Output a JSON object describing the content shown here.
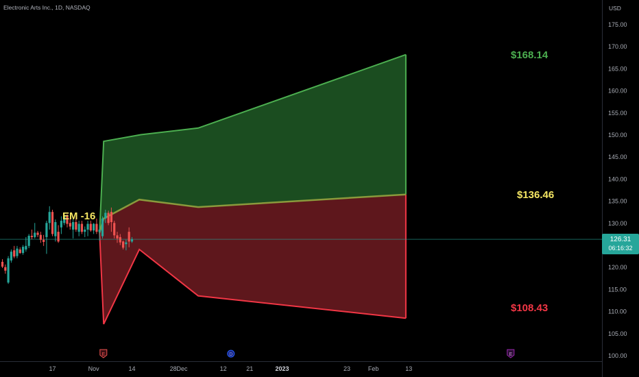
{
  "header": {
    "symbol_title": "Electronic Arts Inc., 1D, NASDAQ",
    "currency": "USD"
  },
  "current_price": {
    "price": "126.31",
    "countdown": "06:16:32"
  },
  "colors": {
    "background": "#000000",
    "up_candle": "#26a69a",
    "down_candle": "#ef5350",
    "upper_band_line": "#4caf50",
    "upper_band_fill": "#1b4d20",
    "lower_band_line": "#f23645",
    "lower_band_fill": "#5e171c",
    "middle_line": "#8a9a3c",
    "upper_label": "#4caf50",
    "middle_label": "#f5e663",
    "lower_label": "#f23645",
    "em_label": "#f5e663",
    "badge": "#26a69a"
  },
  "chart_data": {
    "type": "candlestick",
    "title": "",
    "ylabel": "USD",
    "ylim": [
      99,
      177
    ],
    "y_ticks": [
      "100.00",
      "105.00",
      "110.00",
      "115.00",
      "120.00",
      "125.00",
      "130.00",
      "135.00",
      "140.00",
      "145.00",
      "150.00",
      "155.00",
      "160.00",
      "165.00",
      "170.00",
      "175.00"
    ],
    "x_ticks": [
      {
        "label": "17",
        "x": 17
      },
      {
        "label": "Nov",
        "x": 31
      },
      {
        "label": "14",
        "x": 44
      },
      {
        "label": "28",
        "x": 58
      },
      {
        "label": "Dec",
        "x": 61
      },
      {
        "label": "12",
        "x": 75
      },
      {
        "label": "21",
        "x": 84
      },
      {
        "label": "2023",
        "x": 95,
        "bold": true
      },
      {
        "label": "23",
        "x": 117
      },
      {
        "label": "Feb",
        "x": 126
      },
      {
        "label": "13",
        "x": 138
      }
    ],
    "candles": [
      {
        "x": 0,
        "o": 121.2,
        "h": 121.8,
        "l": 119.8,
        "c": 120.1
      },
      {
        "x": 1,
        "o": 120.0,
        "h": 120.6,
        "l": 118.5,
        "c": 119.2
      },
      {
        "x": 2,
        "o": 116.5,
        "h": 122.5,
        "l": 116.2,
        "c": 122.0
      },
      {
        "x": 3,
        "o": 121.5,
        "h": 124.0,
        "l": 121.0,
        "c": 123.5
      },
      {
        "x": 4,
        "o": 123.8,
        "h": 124.8,
        "l": 122.0,
        "c": 122.4
      },
      {
        "x": 5,
        "o": 122.5,
        "h": 124.8,
        "l": 122.0,
        "c": 124.2
      },
      {
        "x": 6,
        "o": 124.0,
        "h": 124.5,
        "l": 123.0,
        "c": 123.2
      },
      {
        "x": 7,
        "o": 123.2,
        "h": 125.0,
        "l": 122.8,
        "c": 124.6
      },
      {
        "x": 8,
        "o": 124.0,
        "h": 126.8,
        "l": 123.5,
        "c": 124.8
      },
      {
        "x": 9,
        "o": 124.8,
        "h": 127.5,
        "l": 124.3,
        "c": 127.1
      },
      {
        "x": 10,
        "o": 127.1,
        "h": 128.5,
        "l": 126.3,
        "c": 126.8
      },
      {
        "x": 11,
        "o": 126.8,
        "h": 130.0,
        "l": 126.5,
        "c": 127.8
      },
      {
        "x": 12,
        "o": 127.8,
        "h": 128.2,
        "l": 126.8,
        "c": 127.3
      },
      {
        "x": 13,
        "o": 127.3,
        "h": 128.0,
        "l": 125.5,
        "c": 126.2
      },
      {
        "x": 14,
        "o": 126.2,
        "h": 127.3,
        "l": 124.8,
        "c": 125.7
      },
      {
        "x": 15,
        "o": 126.8,
        "h": 130.5,
        "l": 123.0,
        "c": 130.0
      },
      {
        "x": 16,
        "o": 130.0,
        "h": 133.8,
        "l": 128.5,
        "c": 132.5
      },
      {
        "x": 17,
        "o": 132.5,
        "h": 133.0,
        "l": 127.0,
        "c": 127.5
      },
      {
        "x": 18,
        "o": 127.0,
        "h": 130.8,
        "l": 125.8,
        "c": 130.2
      },
      {
        "x": 19,
        "o": 128.0,
        "h": 129.5,
        "l": 125.5,
        "c": 125.8
      },
      {
        "x": 20,
        "o": 129.0,
        "h": 131.5,
        "l": 127.5,
        "c": 130.5
      },
      {
        "x": 21,
        "o": 130.0,
        "h": 132.0,
        "l": 129.5,
        "c": 131.5
      },
      {
        "x": 22,
        "o": 131.5,
        "h": 132.0,
        "l": 129.0,
        "c": 129.8
      },
      {
        "x": 23,
        "o": 130.0,
        "h": 131.0,
        "l": 128.5,
        "c": 129.2
      },
      {
        "x": 24,
        "o": 128.5,
        "h": 130.8,
        "l": 126.5,
        "c": 130.2
      },
      {
        "x": 25,
        "o": 130.2,
        "h": 131.5,
        "l": 128.0,
        "c": 128.5
      },
      {
        "x": 26,
        "o": 128.0,
        "h": 130.5,
        "l": 127.0,
        "c": 129.8
      },
      {
        "x": 27,
        "o": 129.8,
        "h": 130.5,
        "l": 127.5,
        "c": 128.0
      },
      {
        "x": 28,
        "o": 128.0,
        "h": 129.2,
        "l": 126.8,
        "c": 128.5
      },
      {
        "x": 29,
        "o": 128.5,
        "h": 130.5,
        "l": 127.0,
        "c": 129.8
      },
      {
        "x": 30,
        "o": 129.8,
        "h": 130.5,
        "l": 128.0,
        "c": 128.3
      },
      {
        "x": 31,
        "o": 128.3,
        "h": 130.0,
        "l": 127.5,
        "c": 129.8
      },
      {
        "x": 32,
        "o": 129.8,
        "h": 131.0,
        "l": 127.5,
        "c": 128.0
      },
      {
        "x": 33,
        "o": 128.0,
        "h": 129.5,
        "l": 126.0,
        "c": 128.5
      },
      {
        "x": 34,
        "o": 127.0,
        "h": 131.5,
        "l": 126.5,
        "c": 131.0
      },
      {
        "x": 35,
        "o": 131.0,
        "h": 133.0,
        "l": 130.0,
        "c": 132.3
      },
      {
        "x": 36,
        "o": 132.3,
        "h": 132.8,
        "l": 129.5,
        "c": 130.0
      },
      {
        "x": 37,
        "o": 132.5,
        "h": 133.5,
        "l": 128.0,
        "c": 130.2
      },
      {
        "x": 38,
        "o": 130.0,
        "h": 130.5,
        "l": 126.5,
        "c": 127.2
      },
      {
        "x": 39,
        "o": 127.2,
        "h": 128.0,
        "l": 125.5,
        "c": 126.5
      },
      {
        "x": 40,
        "o": 126.8,
        "h": 127.5,
        "l": 125.0,
        "c": 125.6
      },
      {
        "x": 41,
        "o": 125.8,
        "h": 126.0,
        "l": 124.0,
        "c": 124.4
      },
      {
        "x": 42,
        "o": 125.2,
        "h": 126.2,
        "l": 123.8,
        "c": 125.6
      },
      {
        "x": 43,
        "o": 128.0,
        "h": 129.0,
        "l": 124.5,
        "c": 125.8
      },
      {
        "x": 44,
        "o": 125.8,
        "h": 126.8,
        "l": 125.5,
        "c": 126.3
      }
    ],
    "bands": {
      "upper": [
        {
          "x": 33,
          "y": 127.8
        },
        {
          "x": 34.4,
          "y": 148.5
        },
        {
          "x": 47,
          "y": 150.0
        },
        {
          "x": 66.5,
          "y": 151.5
        },
        {
          "x": 137,
          "y": 168.14
        }
      ],
      "middle": [
        {
          "x": 33,
          "y": 127.8
        },
        {
          "x": 34.4,
          "y": 131.0
        },
        {
          "x": 46.5,
          "y": 135.3
        },
        {
          "x": 66.5,
          "y": 133.6
        },
        {
          "x": 137,
          "y": 136.46
        }
      ],
      "lower": [
        {
          "x": 33,
          "y": 127.8
        },
        {
          "x": 34.4,
          "y": 107.1
        },
        {
          "x": 46.5,
          "y": 124.0
        },
        {
          "x": 66.5,
          "y": 113.5
        },
        {
          "x": 137,
          "y": 108.43
        }
      ]
    },
    "annotations": {
      "upper_label": "$168.14",
      "middle_label": "$136.46",
      "lower_label": "$108.43",
      "em_label": "EM -16"
    },
    "events": [
      {
        "x": 34.3,
        "letter": "E",
        "kind": "earnings"
      },
      {
        "x": 77.6,
        "letter": "D",
        "kind": "dividend"
      },
      {
        "x": 172.6,
        "letter": "E",
        "kind": "earnings-upcoming"
      }
    ]
  }
}
